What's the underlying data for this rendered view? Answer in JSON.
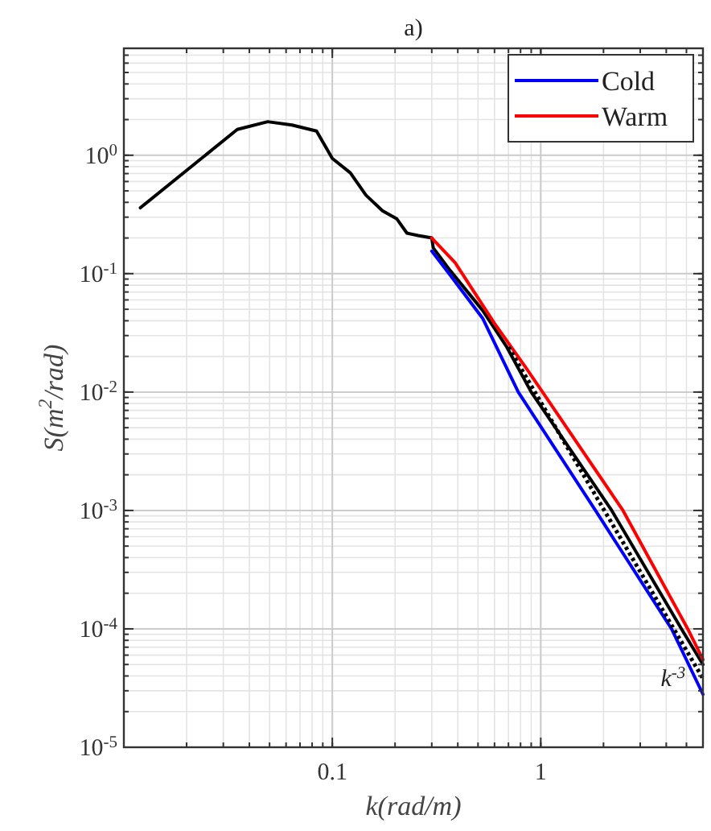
{
  "chart_data": {
    "type": "line",
    "title": "a)",
    "xlabel": "k(rad/m)",
    "ylabel": "S(m$^{2}$/rad)",
    "log": "xy",
    "grid": true,
    "legend": "top right",
    "line_style": "solid",
    "xlim": [
      0.01,
      6
    ],
    "ylim": [
      1e-05,
      8
    ],
    "xticks": [
      0.1,
      1
    ],
    "yticks": [
      {
        "value": 1e-05,
        "label": "10$^{-5}$"
      },
      {
        "value": 0.0001,
        "label": "10$^{-4}$"
      },
      {
        "value": 0.001,
        "label": "10$^{-3}$"
      },
      {
        "value": 0.01,
        "label": "10$^{-2}$"
      },
      {
        "value": 0.1,
        "label": "10$^{-1}$"
      },
      {
        "value": 1,
        "label": "10$^{0}$"
      }
    ],
    "series": [
      {
        "color": "#000000",
        "x": [
          0.012,
          0.035,
          0.049,
          0.064,
          0.084,
          0.1,
          0.122,
          0.145,
          0.174,
          0.204,
          0.228,
          0.258,
          0.3,
          0.305,
          0.368,
          0.526,
          0.687,
          0.9,
          2.19,
          4.73,
          6
        ],
        "values": [
          0.36,
          1.65,
          1.92,
          1.8,
          1.6,
          0.94,
          0.71,
          0.46,
          0.34,
          0.29,
          0.22,
          0.21,
          0.2,
          0.165,
          0.106,
          0.049,
          0.024,
          0.01,
          0.001,
          0.0001,
          5e-05
        ]
      },
      {
        "name": "Cold",
        "color": "#0000ff",
        "x": [
          0.3,
          0.368,
          0.526,
          0.78,
          1.83,
          4.24,
          6
        ],
        "values": [
          0.155,
          0.097,
          0.042,
          0.01,
          0.001,
          0.0001,
          2.8e-05
        ]
      },
      {
        "name": "Warm",
        "color": "#ff0000",
        "x": [
          0.3,
          0.388,
          0.6,
          0.85,
          1.02,
          2.48,
          5.07,
          6
        ],
        "values": [
          0.2,
          0.124,
          0.038,
          0.016,
          0.01,
          0.001,
          0.0001,
          5.5e-05
        ]
      },
      {
        "color": "#000000",
        "line_style": "dotted",
        "x": [
          0.7,
          6
        ],
        "values": [
          0.024,
          3.8e-05
        ]
      }
    ],
    "annotations": [
      {
        "text": "k$^{-3}$",
        "x": 4.8,
        "y": 7.4e-05
      }
    ]
  }
}
